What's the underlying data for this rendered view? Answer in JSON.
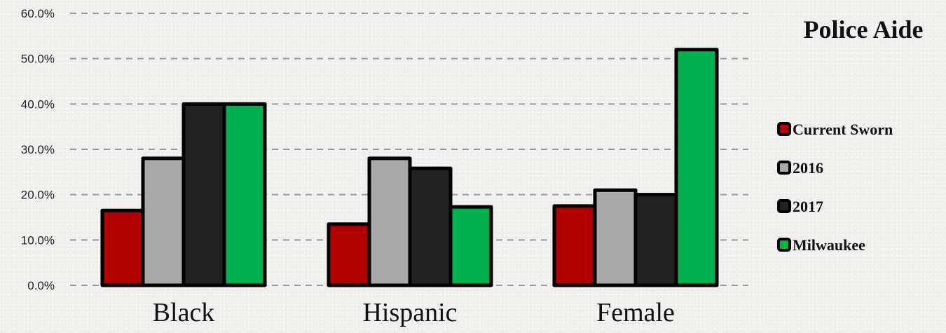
{
  "chart_data": {
    "type": "bar",
    "title": "Police Aide",
    "categories": [
      "Black",
      "Hispanic",
      "Female"
    ],
    "series": [
      {
        "name": "Current Sworn",
        "color": "#b20000",
        "values": [
          16.5,
          13.5,
          17.5
        ]
      },
      {
        "name": "2016",
        "color": "#a9a9a9",
        "values": [
          28.0,
          28.0,
          21.0
        ]
      },
      {
        "name": "2017",
        "color": "#222222",
        "values": [
          40.0,
          25.8,
          20.0
        ]
      },
      {
        "name": "Milwaukee",
        "color": "#00b04f",
        "values": [
          40.0,
          17.3,
          52.0
        ]
      }
    ],
    "yticks": [
      "0.0%",
      "10.0%",
      "20.0%",
      "30.0%",
      "40.0%",
      "50.0%",
      "60.0%"
    ],
    "ylim": [
      0,
      60
    ],
    "xlabel": "",
    "ylabel": "",
    "grid": true,
    "legend": "right"
  }
}
